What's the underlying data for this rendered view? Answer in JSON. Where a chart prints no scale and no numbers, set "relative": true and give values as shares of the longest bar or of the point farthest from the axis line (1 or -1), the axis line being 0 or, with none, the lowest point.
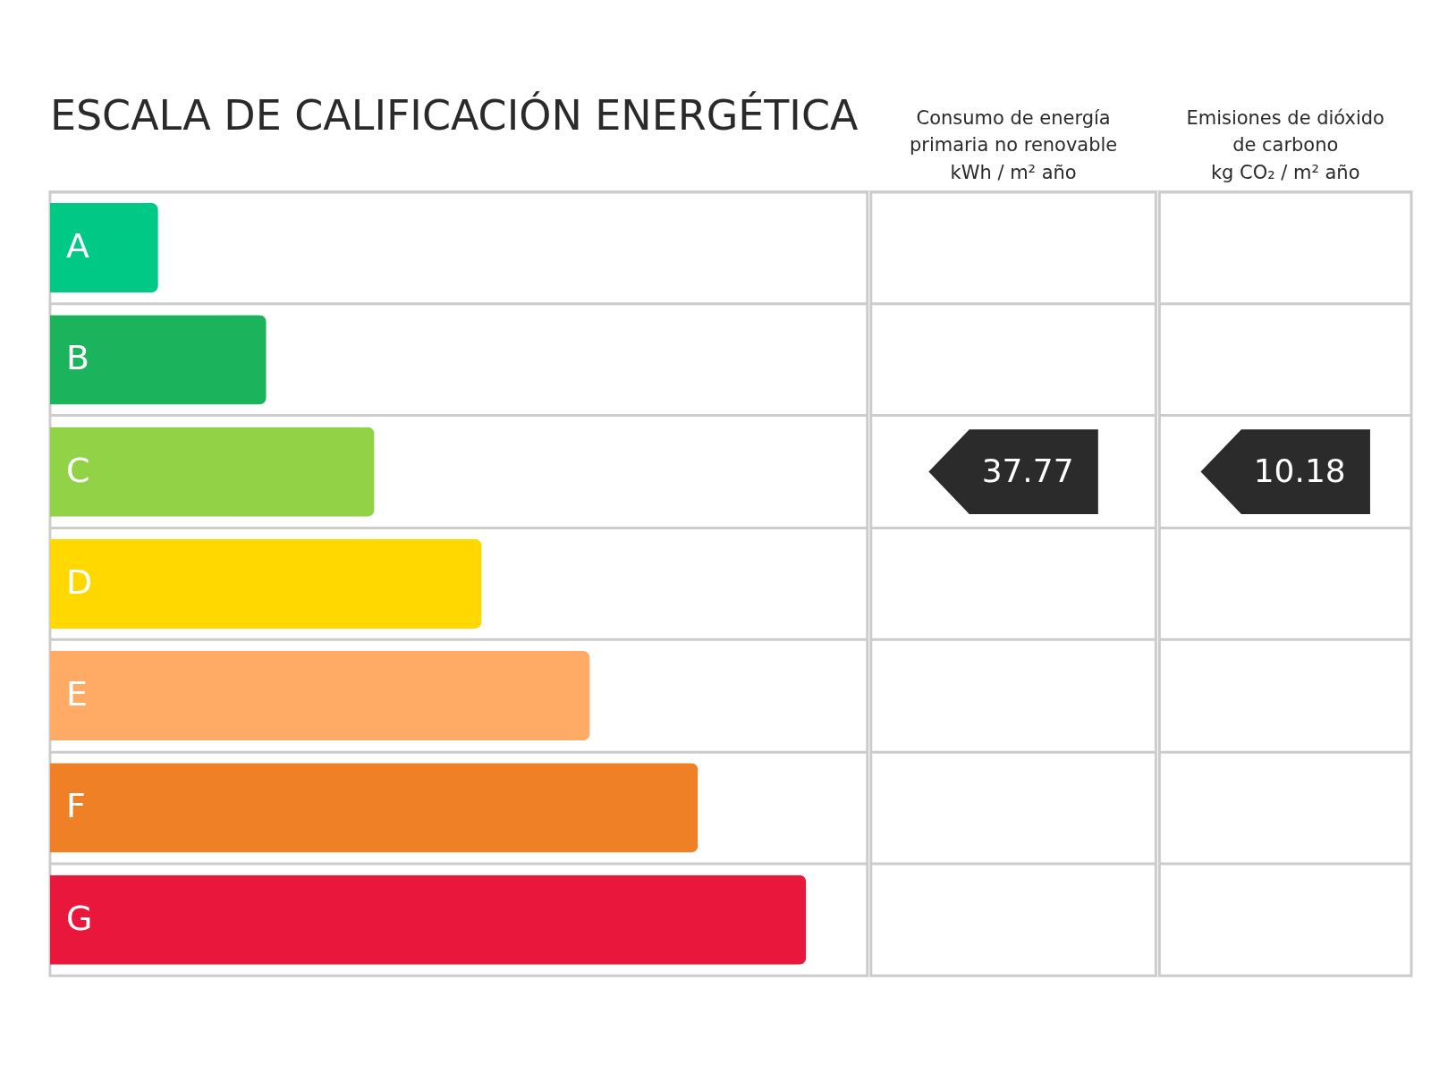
{
  "chart_data": {
    "type": "bar",
    "orientation": "horizontal",
    "relative": true,
    "grid": "y",
    "title": "ESCALA DE CALIFICACIÓN ENERGÉTICA",
    "categories": [
      "A",
      "B",
      "C",
      "D",
      "E",
      "F",
      "G"
    ],
    "values": [
      0.143,
      0.286,
      0.429,
      0.571,
      0.714,
      0.857,
      1
    ],
    "colors": [
      "#00c985",
      "#1bb35b",
      "#92d246",
      "#ffd800",
      "#ffaa65",
      "#ef8026",
      "#e8173b"
    ],
    "annotations": [
      "Consumo de energía\nprimaria no renovable\nkWh / m² año",
      "Emisiones de dióxido\nde carbono\nkg CO₂ / m² año",
      "37.77",
      "10.18"
    ]
  }
}
